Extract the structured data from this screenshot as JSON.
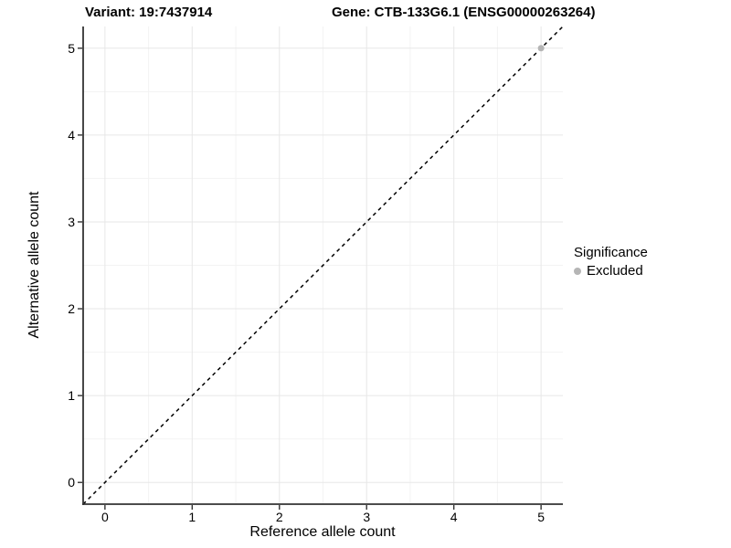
{
  "titles": {
    "variant": "Variant: 19:7437914",
    "gene": "Gene: CTB-133G6.1 (ENSG00000263264)"
  },
  "legend": {
    "title": "Significance",
    "items": [
      {
        "label": "Excluded",
        "color": "#b5b5b5"
      }
    ]
  },
  "chart_data": {
    "type": "scatter",
    "title": "Variant: 19:7437914 / Gene: CTB-133G6.1 (ENSG00000263264)",
    "xlabel": "Reference allele count",
    "ylabel": "Alternative allele count",
    "xlim": [
      -0.25,
      5.25
    ],
    "ylim": [
      -0.25,
      5.25
    ],
    "x_ticks": [
      0,
      1,
      2,
      3,
      4,
      5
    ],
    "y_ticks": [
      0,
      1,
      2,
      3,
      4,
      5
    ],
    "minor_step": 0.5,
    "grid": true,
    "legend_position": "right",
    "identity_line": {
      "style": "dashed",
      "color": "#000000",
      "from": [
        -0.25,
        -0.25
      ],
      "to": [
        5.25,
        5.25
      ]
    },
    "series": [
      {
        "name": "Excluded",
        "color": "#b5b5b5",
        "points": [
          [
            5,
            5
          ]
        ]
      }
    ],
    "colors": {
      "grid_major": "#e7e7e7",
      "grid_minor": "#f3f3f3",
      "axis_line": "#333333",
      "tick_mark": "#333333",
      "background": "#ffffff"
    }
  }
}
